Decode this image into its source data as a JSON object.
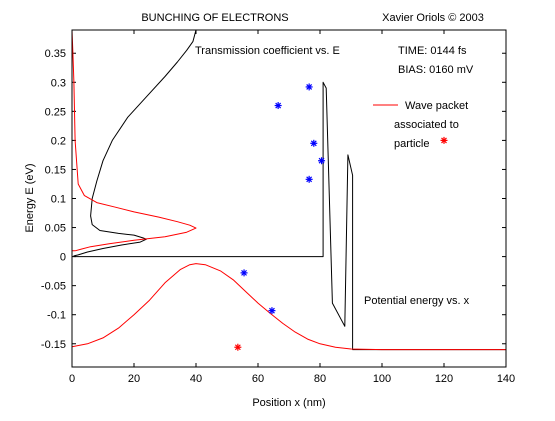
{
  "header": {
    "title": "BUNCHING OF ELECTRONS",
    "author": "Xavier Oriols  ©  2003"
  },
  "annotations": {
    "transmission": "Transmission coefficient vs. E",
    "time": "TIME:  0144   fs",
    "bias": "BIAS:  0160   mV",
    "legend_line1": "Wave packet",
    "legend_line2": "associated to",
    "legend_line3": "particle",
    "potential": "Potential energy vs. x"
  },
  "chart_data": {
    "type": "line",
    "title": "BUNCHING OF ELECTRONS",
    "xlabel": "Position x (nm)",
    "ylabel": "Energy E (eV)",
    "xlim": [
      0,
      140
    ],
    "ylim": [
      -0.19,
      0.39
    ],
    "xticks": [
      0,
      20,
      40,
      60,
      80,
      100,
      120,
      140
    ],
    "xtick_labels": [
      "0",
      "20",
      "40",
      "60",
      "80",
      "100",
      "120",
      "140"
    ],
    "yticks": [
      -0.15,
      -0.1,
      -0.05,
      0,
      0.05,
      0.1,
      0.15,
      0.2,
      0.25,
      0.3,
      0.35
    ],
    "ytick_labels": [
      "-0.15",
      "-0.1",
      "-0.05",
      "0",
      "0.05",
      "0.1",
      "0.15",
      "0.2",
      "0.25",
      "0.3",
      "0.35"
    ],
    "grid": false,
    "colors": {
      "transmission": "#000000",
      "potential": "#000000",
      "wave_packet": "#ff0000",
      "electrons": "#0000ff",
      "particle": "#ff0000"
    },
    "series": [
      {
        "role": "transmission",
        "points": [
          [
            40,
            0.39
          ],
          [
            39,
            0.37
          ],
          [
            37,
            0.355
          ],
          [
            34,
            0.335
          ],
          [
            30,
            0.31
          ],
          [
            24,
            0.275
          ],
          [
            18,
            0.24
          ],
          [
            13,
            0.2
          ],
          [
            10,
            0.165
          ],
          [
            8,
            0.13
          ],
          [
            6.5,
            0.1
          ],
          [
            6,
            0.07
          ],
          [
            6.5,
            0.055
          ],
          [
            9,
            0.045
          ],
          [
            15,
            0.04
          ],
          [
            20,
            0.037
          ],
          [
            23,
            0.032
          ],
          [
            24,
            0.03
          ],
          [
            22,
            0.025
          ],
          [
            16,
            0.02
          ],
          [
            10,
            0.014
          ],
          [
            5,
            0.008
          ],
          [
            2,
            0.003
          ],
          [
            0.5,
            0.001
          ]
        ]
      },
      {
        "role": "potential",
        "points": [
          [
            0.5,
            0
          ],
          [
            81,
            0
          ],
          [
            81,
            0.3
          ],
          [
            82,
            0.29
          ],
          [
            84,
            -0.08
          ],
          [
            88,
            -0.12
          ],
          [
            89,
            0.175
          ],
          [
            90.5,
            0.14
          ],
          [
            90.5,
            -0.16
          ],
          [
            140,
            -0.16
          ]
        ]
      },
      {
        "role": "wave_packet_energy",
        "points": [
          [
            0,
            0.39
          ],
          [
            0.3,
            0.35
          ],
          [
            0.6,
            0.3
          ],
          [
            1,
            0.2
          ],
          [
            2,
            0.125
          ],
          [
            4,
            0.105
          ],
          [
            8,
            0.093
          ],
          [
            14,
            0.085
          ],
          [
            20,
            0.077
          ],
          [
            28,
            0.068
          ],
          [
            34,
            0.06
          ],
          [
            38,
            0.054
          ],
          [
            40,
            0.049
          ],
          [
            37,
            0.042
          ],
          [
            30,
            0.034
          ],
          [
            20,
            0.028
          ],
          [
            12,
            0.022
          ],
          [
            6,
            0.017
          ],
          [
            3,
            0.013
          ],
          [
            1,
            0.01
          ],
          [
            0,
            0.01
          ]
        ]
      },
      {
        "role": "wave_packet_position",
        "points": [
          [
            0,
            -0.155
          ],
          [
            5,
            -0.15
          ],
          [
            10,
            -0.14
          ],
          [
            15,
            -0.123
          ],
          [
            20,
            -0.1
          ],
          [
            25,
            -0.075
          ],
          [
            30,
            -0.045
          ],
          [
            35,
            -0.022
          ],
          [
            38,
            -0.014
          ],
          [
            40,
            -0.012
          ],
          [
            43,
            -0.014
          ],
          [
            48,
            -0.025
          ],
          [
            52,
            -0.04
          ],
          [
            56,
            -0.06
          ],
          [
            60,
            -0.08
          ],
          [
            64,
            -0.098
          ],
          [
            68,
            -0.115
          ],
          [
            72,
            -0.13
          ],
          [
            76,
            -0.142
          ],
          [
            80,
            -0.15
          ],
          [
            85,
            -0.156
          ],
          [
            90,
            -0.159
          ],
          [
            100,
            -0.16
          ],
          [
            140,
            -0.16
          ]
        ]
      }
    ],
    "electrons": [
      [
        76.5,
        0.292
      ],
      [
        66.5,
        0.26
      ],
      [
        78,
        0.195
      ],
      [
        80.5,
        0.165
      ],
      [
        76.5,
        0.133
      ],
      [
        55.5,
        -0.028
      ],
      [
        64.5,
        -0.093
      ]
    ],
    "particle": [
      53.5,
      -0.156
    ],
    "legend_marker": [
      120,
      0.2
    ]
  }
}
